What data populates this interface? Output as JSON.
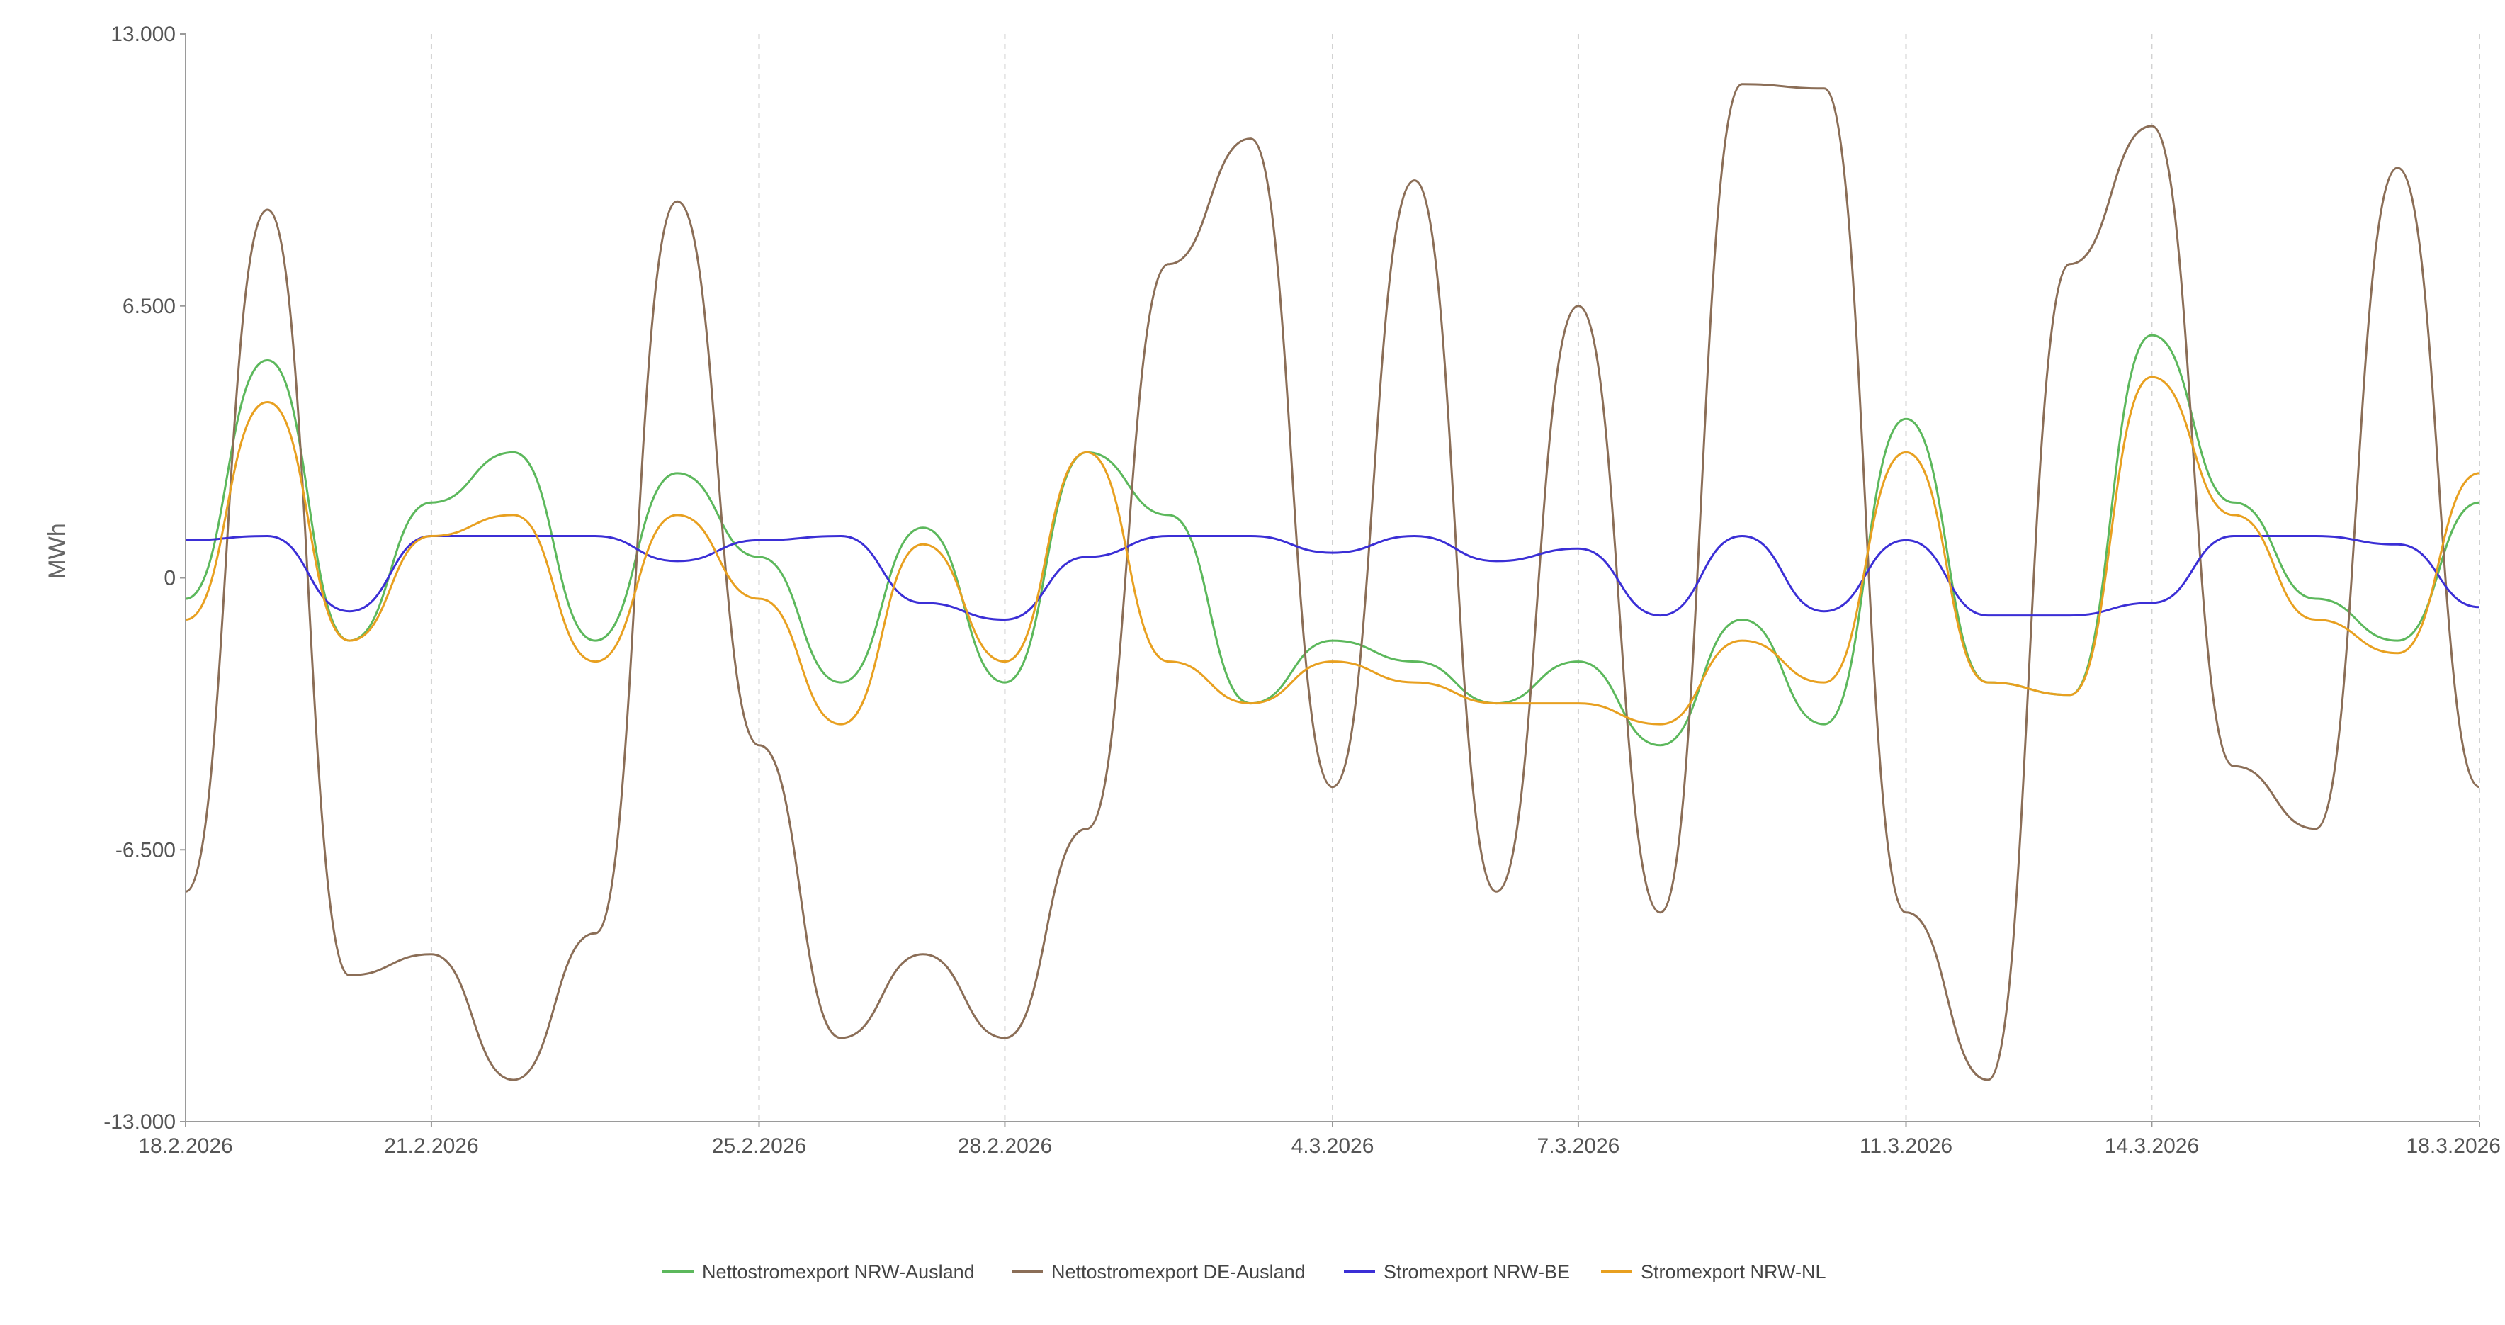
{
  "chart_data": {
    "type": "line",
    "title": "",
    "xlabel": "",
    "ylabel": "MWh",
    "ylim": [
      -13000,
      13000
    ],
    "y_ticks": [
      13000,
      6500,
      0,
      -6500,
      -13000
    ],
    "y_tick_labels": [
      "13.000",
      "6.500",
      "0",
      "-6.500",
      "-13.000"
    ],
    "x_range": [
      "2026-02-18",
      "2026-03-18"
    ],
    "x_ticks": [
      "2026-02-18",
      "2026-02-21",
      "2026-02-25",
      "2026-02-28",
      "2026-03-04",
      "2026-03-07",
      "2026-03-11",
      "2026-03-14",
      "2026-03-18"
    ],
    "x_tick_labels": [
      "18.2.2026",
      "21.2.2026",
      "25.2.2026",
      "28.2.2026",
      "4.3.2026",
      "7.3.2026",
      "11.3.2026",
      "14.3.2026",
      "18.3.2026"
    ],
    "vertical_grid": true,
    "grid_style": "dashed",
    "legend_position": "bottom",
    "series": [
      {
        "name": "Nettostromexport NRW-Ausland",
        "color": "#5cb85c",
        "x": [
          "2026-02-18",
          "2026-02-19",
          "2026-02-20",
          "2026-02-21",
          "2026-02-22",
          "2026-02-23",
          "2026-02-24",
          "2026-02-25",
          "2026-02-26",
          "2026-02-27",
          "2026-02-28",
          "2026-03-01",
          "2026-03-02",
          "2026-03-03",
          "2026-03-04",
          "2026-03-05",
          "2026-03-06",
          "2026-03-07",
          "2026-03-08",
          "2026-03-09",
          "2026-03-10",
          "2026-03-11",
          "2026-03-12",
          "2026-03-13",
          "2026-03-14",
          "2026-03-15",
          "2026-03-16",
          "2026-03-17",
          "2026-03-18"
        ],
        "y": [
          -500,
          5200,
          -1500,
          1800,
          3000,
          -1500,
          2500,
          500,
          -2500,
          1200,
          -2500,
          3000,
          1500,
          -3000,
          -1500,
          -2000,
          -3000,
          -2000,
          -4000,
          -1000,
          -3500,
          3800,
          -2500,
          -2800,
          5800,
          1800,
          -500,
          -1500,
          1800
        ]
      },
      {
        "name": "Nettostromexport DE-Ausland",
        "color": "#8b6e57",
        "x": [
          "2026-02-18",
          "2026-02-19",
          "2026-02-20",
          "2026-02-21",
          "2026-02-22",
          "2026-02-23",
          "2026-02-24",
          "2026-02-25",
          "2026-02-26",
          "2026-02-27",
          "2026-02-28",
          "2026-03-01",
          "2026-03-02",
          "2026-03-03",
          "2026-03-04",
          "2026-03-05",
          "2026-03-06",
          "2026-03-07",
          "2026-03-08",
          "2026-03-09",
          "2026-03-10",
          "2026-03-11",
          "2026-03-12",
          "2026-03-13",
          "2026-03-14",
          "2026-03-15",
          "2026-03-16",
          "2026-03-17",
          "2026-03-18"
        ],
        "y": [
          -7500,
          8800,
          -9500,
          -9000,
          -12000,
          -8500,
          9000,
          -4000,
          -11000,
          -9000,
          -11000,
          -6000,
          7500,
          10500,
          -5000,
          9500,
          -7500,
          6500,
          -8000,
          11800,
          11700,
          -8000,
          -12000,
          7500,
          10800,
          -4500,
          -6000,
          9800,
          -5000
        ]
      },
      {
        "name": "Stromexport NRW-BE",
        "color": "#3b2fd6",
        "x": [
          "2026-02-18",
          "2026-02-19",
          "2026-02-20",
          "2026-02-21",
          "2026-02-22",
          "2026-02-23",
          "2026-02-24",
          "2026-02-25",
          "2026-02-26",
          "2026-02-27",
          "2026-02-28",
          "2026-03-01",
          "2026-03-02",
          "2026-03-03",
          "2026-03-04",
          "2026-03-05",
          "2026-03-06",
          "2026-03-07",
          "2026-03-08",
          "2026-03-09",
          "2026-03-10",
          "2026-03-11",
          "2026-03-12",
          "2026-03-13",
          "2026-03-14",
          "2026-03-15",
          "2026-03-16",
          "2026-03-17",
          "2026-03-18"
        ],
        "y": [
          900,
          1000,
          -800,
          1000,
          1000,
          1000,
          400,
          900,
          1000,
          -600,
          -1000,
          500,
          1000,
          1000,
          600,
          1000,
          400,
          700,
          -900,
          1000,
          -800,
          900,
          -900,
          -900,
          -600,
          1000,
          1000,
          800,
          -700
        ]
      },
      {
        "name": "Stromexport NRW-NL",
        "color": "#e8a020",
        "x": [
          "2026-02-18",
          "2026-02-19",
          "2026-02-20",
          "2026-02-21",
          "2026-02-22",
          "2026-02-23",
          "2026-02-24",
          "2026-02-25",
          "2026-02-26",
          "2026-02-27",
          "2026-02-28",
          "2026-03-01",
          "2026-03-02",
          "2026-03-03",
          "2026-03-04",
          "2026-03-05",
          "2026-03-06",
          "2026-03-07",
          "2026-03-08",
          "2026-03-09",
          "2026-03-10",
          "2026-03-11",
          "2026-03-12",
          "2026-03-13",
          "2026-03-14",
          "2026-03-15",
          "2026-03-16",
          "2026-03-17",
          "2026-03-18"
        ],
        "y": [
          -1000,
          4200,
          -1500,
          1000,
          1500,
          -2000,
          1500,
          -500,
          -3500,
          800,
          -2000,
          3000,
          -2000,
          -3000,
          -2000,
          -2500,
          -3000,
          -3000,
          -3500,
          -1500,
          -2500,
          3000,
          -2500,
          -2800,
          4800,
          1500,
          -1000,
          -1800,
          2500
        ]
      }
    ]
  }
}
